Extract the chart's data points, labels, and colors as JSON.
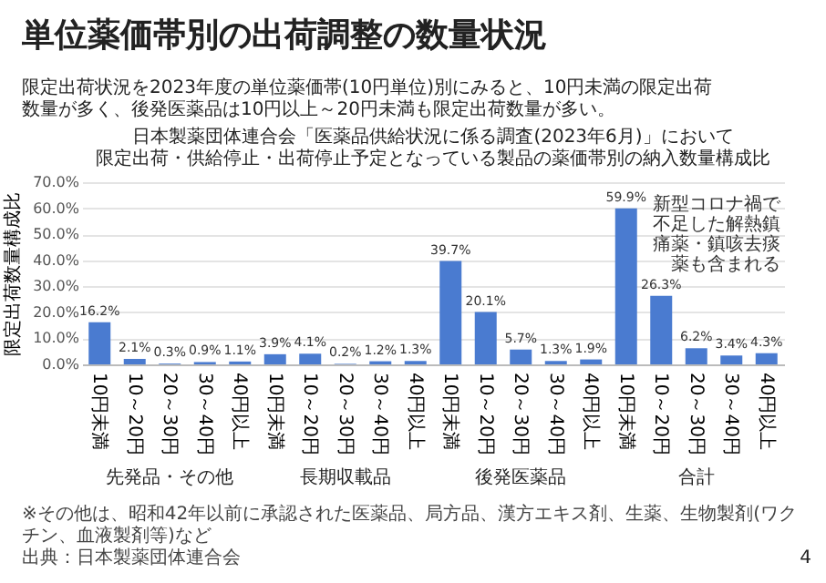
{
  "chart_data": {
    "type": "bar",
    "title": "単位薬価帯別の出荷調整の数量状況",
    "subtitle": "限定出荷状況を2023年度の単位薬価帯(10円単位)別にみると、10円未満の限定出荷数量が多く、後発医薬品は10円以上～20円未満も限定出荷数量が多い。",
    "ylabel": "限定出荷数量構成比",
    "categories": [
      "10円未満",
      "10～20円",
      "20～30円",
      "30～40円",
      "40円以上",
      "10円未満",
      "10～20円",
      "20～30円",
      "30～40円",
      "40円以上",
      "10円未満",
      "10～20円",
      "20～30円",
      "30～40円",
      "40円以上",
      "10円未満",
      "10～20円",
      "20～30円",
      "30～40円",
      "40円以上"
    ],
    "values": [
      16.2,
      2.1,
      0.3,
      0.9,
      1.1,
      3.9,
      4.1,
      0.2,
      1.2,
      1.3,
      39.7,
      20.1,
      5.7,
      1.3,
      1.9,
      59.9,
      26.3,
      6.2,
      3.4,
      4.3
    ],
    "value_labels": [
      "16.2%",
      "2.1%",
      "0.3%",
      "0.9%",
      "1.1%",
      "3.9%",
      "4.1%",
      "0.2%",
      "1.2%",
      "1.3%",
      "39.7%",
      "20.1%",
      "5.7%",
      "1.3%",
      "1.9%",
      "59.9%",
      "26.3%",
      "6.2%",
      "3.4%",
      "4.3%"
    ],
    "color": "#4a7bd0",
    "ylim": [
      0,
      70
    ],
    "yticks": [
      {
        "value": 0,
        "label": "0.0%"
      },
      {
        "value": 10,
        "label": "10.0%"
      },
      {
        "value": 20,
        "label": "20.0%"
      },
      {
        "value": 30,
        "label": "30.0%"
      },
      {
        "value": 40,
        "label": "40.0%"
      },
      {
        "value": 50,
        "label": "50.0%"
      },
      {
        "value": 60,
        "label": "60.0%"
      },
      {
        "value": 70,
        "label": "70.0%"
      }
    ],
    "grid": "y",
    "annotations": [
      "日本製薬団体連合会「医薬品供給状況に係る調査(2023年6月)」において",
      "限定出荷・供給停止・出荷停止予定となっている製品の薬価帯別の納入数量構成比",
      "先発品・その他",
      "長期収載品",
      "後発医薬品",
      "合計",
      "新型コロナ禍で不足した解熱鎮痛薬・鎮咳去痰薬も含まれる",
      "※その他は、昭和42年以前に承認された医薬品、局方品、漢方エキス剤、生薬、生物製剤(ワクチン、血液製剤等)など",
      "出典：日本製薬団体連合会",
      "4"
    ]
  }
}
